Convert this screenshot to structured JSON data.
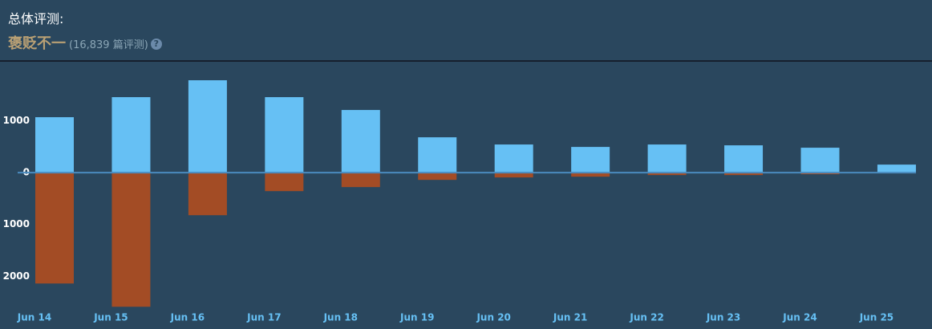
{
  "header": {
    "label": "总体评测:",
    "summary": "褒贬不一",
    "review_count": "(16,839 篇评测)",
    "help_icon": "?"
  },
  "chart_data": {
    "type": "bar",
    "stacked": true,
    "categories": [
      "Jun 14",
      "Jun 15",
      "Jun 16",
      "Jun 17",
      "Jun 18",
      "Jun 19",
      "Jun 20",
      "Jun 21",
      "Jun 22",
      "Jun 23",
      "Jun 24",
      "Jun 25"
    ],
    "series": [
      {
        "color": "#66c0f4",
        "values": [
          1070,
          1457,
          1783,
          1457,
          1209,
          682,
          543,
          496,
          543,
          527,
          481,
          155
        ]
      },
      {
        "color": "#a34c25",
        "values": [
          -2140,
          -2589,
          -822,
          -357,
          -279,
          -140,
          -93,
          -78,
          -47,
          -47,
          -31,
          0
        ]
      }
    ],
    "ylim": [
      -2600,
      2000
    ],
    "yticks": [
      {
        "value": 1000,
        "label": "1000"
      },
      0,
      {
        "value": -1000,
        "label": "1000"
      },
      {
        "value": -2000,
        "label": "2000"
      }
    ],
    "grid": false
  }
}
